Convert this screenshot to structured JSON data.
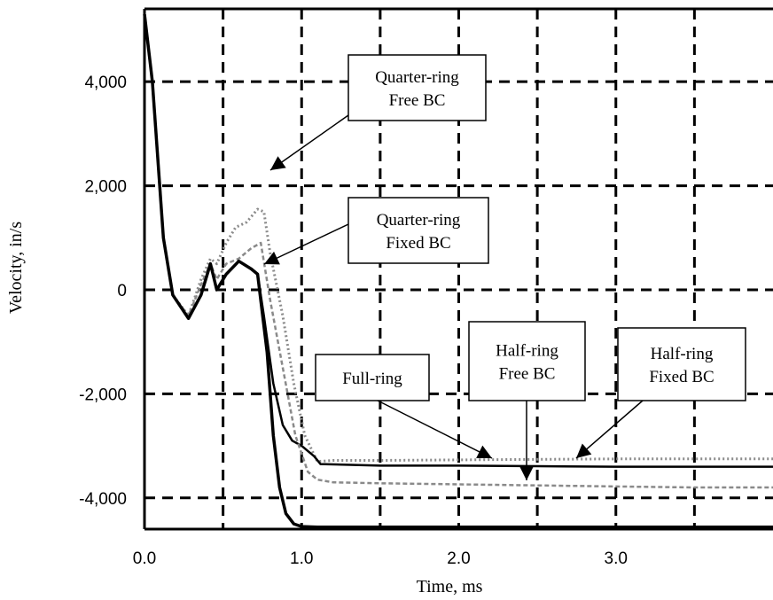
{
  "chart_data": {
    "type": "line",
    "title": "",
    "xlabel": "Time, ms",
    "ylabel": "Velocity, in/s",
    "xlim": [
      0.0,
      4.0
    ],
    "ylim": [
      -4600,
      5400
    ],
    "grid": true,
    "x_ticks": [
      {
        "value": 0.0,
        "label": "0.0"
      },
      {
        "value": 1.0,
        "label": "1.0"
      },
      {
        "value": 2.0,
        "label": "2.0"
      },
      {
        "value": 3.0,
        "label": "3.0"
      }
    ],
    "y_ticks": [
      {
        "value": 4000,
        "label": "4,000"
      },
      {
        "value": 2000,
        "label": "2,000"
      },
      {
        "value": 0,
        "label": "0"
      },
      {
        "value": -2000,
        "label": "-2,000"
      },
      {
        "value": -4000,
        "label": "-4,000"
      }
    ],
    "x_grid": [
      0.5,
      1.0,
      1.5,
      2.0,
      2.5,
      3.0,
      3.5
    ],
    "y_grid": [
      4000,
      2000,
      0,
      -2000,
      -4000
    ],
    "series": [
      {
        "color": "#8a8a8a",
        "style": "dotted",
        "x": [
          0.0,
          0.05,
          0.12,
          0.18,
          0.28,
          0.36,
          0.42,
          0.46,
          0.52,
          0.58,
          0.65,
          0.72,
          0.76,
          0.8,
          0.88,
          0.95,
          1.02,
          1.1,
          1.2,
          1.5,
          2.0,
          2.5,
          3.0,
          3.5,
          4.0
        ],
        "y": [
          5300,
          4000,
          1000,
          -100,
          -500,
          200,
          600,
          500,
          900,
          1200,
          1300,
          1550,
          1500,
          700,
          -500,
          -1800,
          -2800,
          -3300,
          -3280,
          -3280,
          -3270,
          -3260,
          -3250,
          -3250,
          -3250
        ]
      },
      {
        "color": "#000000",
        "style": "solid",
        "x": [
          0.0,
          0.05,
          0.12,
          0.18,
          0.28,
          0.36,
          0.42,
          0.46,
          0.52,
          0.6,
          0.68,
          0.72,
          0.76,
          0.82,
          0.88,
          0.94,
          1.0,
          1.08,
          1.12,
          1.5,
          2.0,
          2.5,
          3.0,
          3.5,
          4.0
        ],
        "y": [
          5300,
          4000,
          1000,
          -100,
          -550,
          -100,
          500,
          0,
          300,
          550,
          400,
          300,
          -500,
          -1800,
          -2600,
          -2900,
          -3000,
          -3200,
          -3350,
          -3380,
          -3380,
          -3390,
          -3400,
          -3400,
          -3400
        ]
      },
      {
        "color": "#8a8a8a",
        "style": "dashed",
        "x": [
          0.0,
          0.05,
          0.12,
          0.18,
          0.28,
          0.36,
          0.42,
          0.46,
          0.52,
          0.6,
          0.68,
          0.74,
          0.8,
          0.88,
          0.96,
          1.04,
          1.1,
          1.2,
          1.5,
          2.0,
          2.5,
          3.0,
          3.5,
          4.0
        ],
        "y": [
          5300,
          4000,
          1000,
          -100,
          -500,
          100,
          500,
          200,
          500,
          600,
          800,
          900,
          -200,
          -1500,
          -2800,
          -3500,
          -3650,
          -3700,
          -3720,
          -3740,
          -3760,
          -3780,
          -3800,
          -3800
        ]
      },
      {
        "color": "#000000",
        "style": "solid-bold",
        "x": [
          0.0,
          0.05,
          0.12,
          0.18,
          0.28,
          0.36,
          0.42,
          0.46,
          0.52,
          0.6,
          0.68,
          0.72,
          0.78,
          0.82,
          0.86,
          0.9,
          0.95,
          1.0,
          1.1,
          1.5,
          2.0,
          2.5,
          3.0,
          3.5,
          4.0
        ],
        "y": [
          5300,
          4000,
          1000,
          -100,
          -550,
          -100,
          500,
          0,
          300,
          550,
          400,
          300,
          -1200,
          -2800,
          -3800,
          -4300,
          -4500,
          -4550,
          -4560,
          -4560,
          -4560,
          -4560,
          -4560,
          -4560,
          -4560
        ]
      }
    ],
    "annotations": [
      {
        "lines": [
          "Quarter-ring",
          "Free BC"
        ]
      },
      {
        "lines": [
          "Quarter-ring",
          "Fixed BC"
        ]
      },
      {
        "lines": [
          "Full-ring"
        ]
      },
      {
        "lines": [
          "Half-ring",
          "Free BC"
        ]
      },
      {
        "lines": [
          "Half-ring",
          "Fixed BC"
        ]
      }
    ]
  }
}
